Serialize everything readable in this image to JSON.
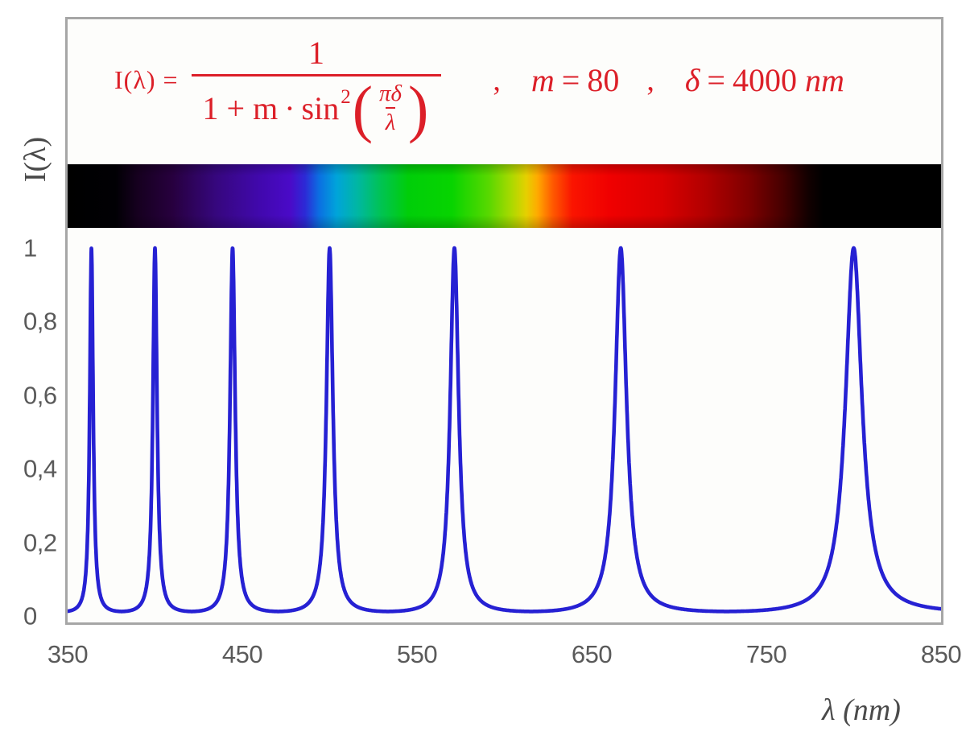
{
  "formula": {
    "lhs": "I(λ) =",
    "num": "1",
    "den_pre": "1 + m",
    "dot": "·",
    "sin": "sin",
    "sin_sup": "2",
    "open_paren": "(",
    "inner_num": "πδ",
    "inner_den": "λ",
    "close_paren": ")",
    "comma1": ",",
    "comma2": ",",
    "m_name": "m",
    "m_eq": "=",
    "m_val": "80",
    "d_name": "δ",
    "d_eq": "=",
    "d_val": "4000",
    "d_unit": "nm"
  },
  "axes": {
    "y_title": "I(λ)",
    "x_title": "λ  (nm)",
    "y_tick_labels": [
      "1",
      "0,8",
      "0,6",
      "0,4",
      "0,2",
      "0"
    ],
    "x_tick_labels": [
      "350",
      "450",
      "550",
      "650",
      "750",
      "850"
    ]
  },
  "chart_data": {
    "type": "line",
    "title": "Airy transmission function of a Fabry–Perot interferometer",
    "formula_text": "I(λ) = 1 / (1 + m · sin²(πδ/λ))",
    "params": {
      "m": 80,
      "delta_nm": 4000
    },
    "xlabel": "λ (nm)",
    "ylabel": "I(λ)",
    "xlim": [
      350,
      850
    ],
    "ylim": [
      0,
      1
    ],
    "x_ticks": [
      350,
      450,
      550,
      650,
      750,
      850
    ],
    "y_ticks": [
      1,
      0.8,
      0.6,
      0.4,
      0.2,
      0
    ],
    "grid": false,
    "legend": false,
    "sample_step_nm": 0.1,
    "peaks_nm": [
      363.64,
      400.0,
      444.44,
      500.0,
      571.43,
      666.67,
      800.0
    ],
    "peak_value": 1.0,
    "min_value": 0.0123,
    "curve_color": "#2621d3",
    "formula_color": "#dc1f28",
    "tick_color": "#5a5a5a",
    "axis_title_color": "#4a4a4a",
    "frame_color": "#a6a6a6",
    "spectrum_band": {
      "description": "visible spectrum color strip mapped to wavelength axis, black below 380 nm and above ~780 nm",
      "stops": [
        {
          "pos": 0,
          "color": "#000000"
        },
        {
          "pos": 5.5,
          "color": "#010004"
        },
        {
          "pos": 8,
          "color": "#16001f"
        },
        {
          "pos": 12,
          "color": "#27003e"
        },
        {
          "pos": 17,
          "color": "#36077e"
        },
        {
          "pos": 22,
          "color": "#4108ad"
        },
        {
          "pos": 25.5,
          "color": "#4a0ac8"
        },
        {
          "pos": 27.2,
          "color": "#2c2ad6"
        },
        {
          "pos": 28.8,
          "color": "#0b6fe2"
        },
        {
          "pos": 30.8,
          "color": "#00a4da"
        },
        {
          "pos": 33.2,
          "color": "#00b7a2"
        },
        {
          "pos": 35.8,
          "color": "#00c355"
        },
        {
          "pos": 39,
          "color": "#00ce09"
        },
        {
          "pos": 44,
          "color": "#07d400"
        },
        {
          "pos": 48.2,
          "color": "#58d800"
        },
        {
          "pos": 50.8,
          "color": "#aad900"
        },
        {
          "pos": 52.5,
          "color": "#e5d000"
        },
        {
          "pos": 53.8,
          "color": "#ffaa00"
        },
        {
          "pos": 55.5,
          "color": "#ff5b00"
        },
        {
          "pos": 57.8,
          "color": "#fa1400"
        },
        {
          "pos": 62,
          "color": "#f00000"
        },
        {
          "pos": 68,
          "color": "#da0000"
        },
        {
          "pos": 73,
          "color": "#b20000"
        },
        {
          "pos": 78,
          "color": "#7e0000"
        },
        {
          "pos": 82,
          "color": "#440000"
        },
        {
          "pos": 84.8,
          "color": "#120000"
        },
        {
          "pos": 86.5,
          "color": "#000000"
        },
        {
          "pos": 100,
          "color": "#000000"
        }
      ]
    }
  }
}
